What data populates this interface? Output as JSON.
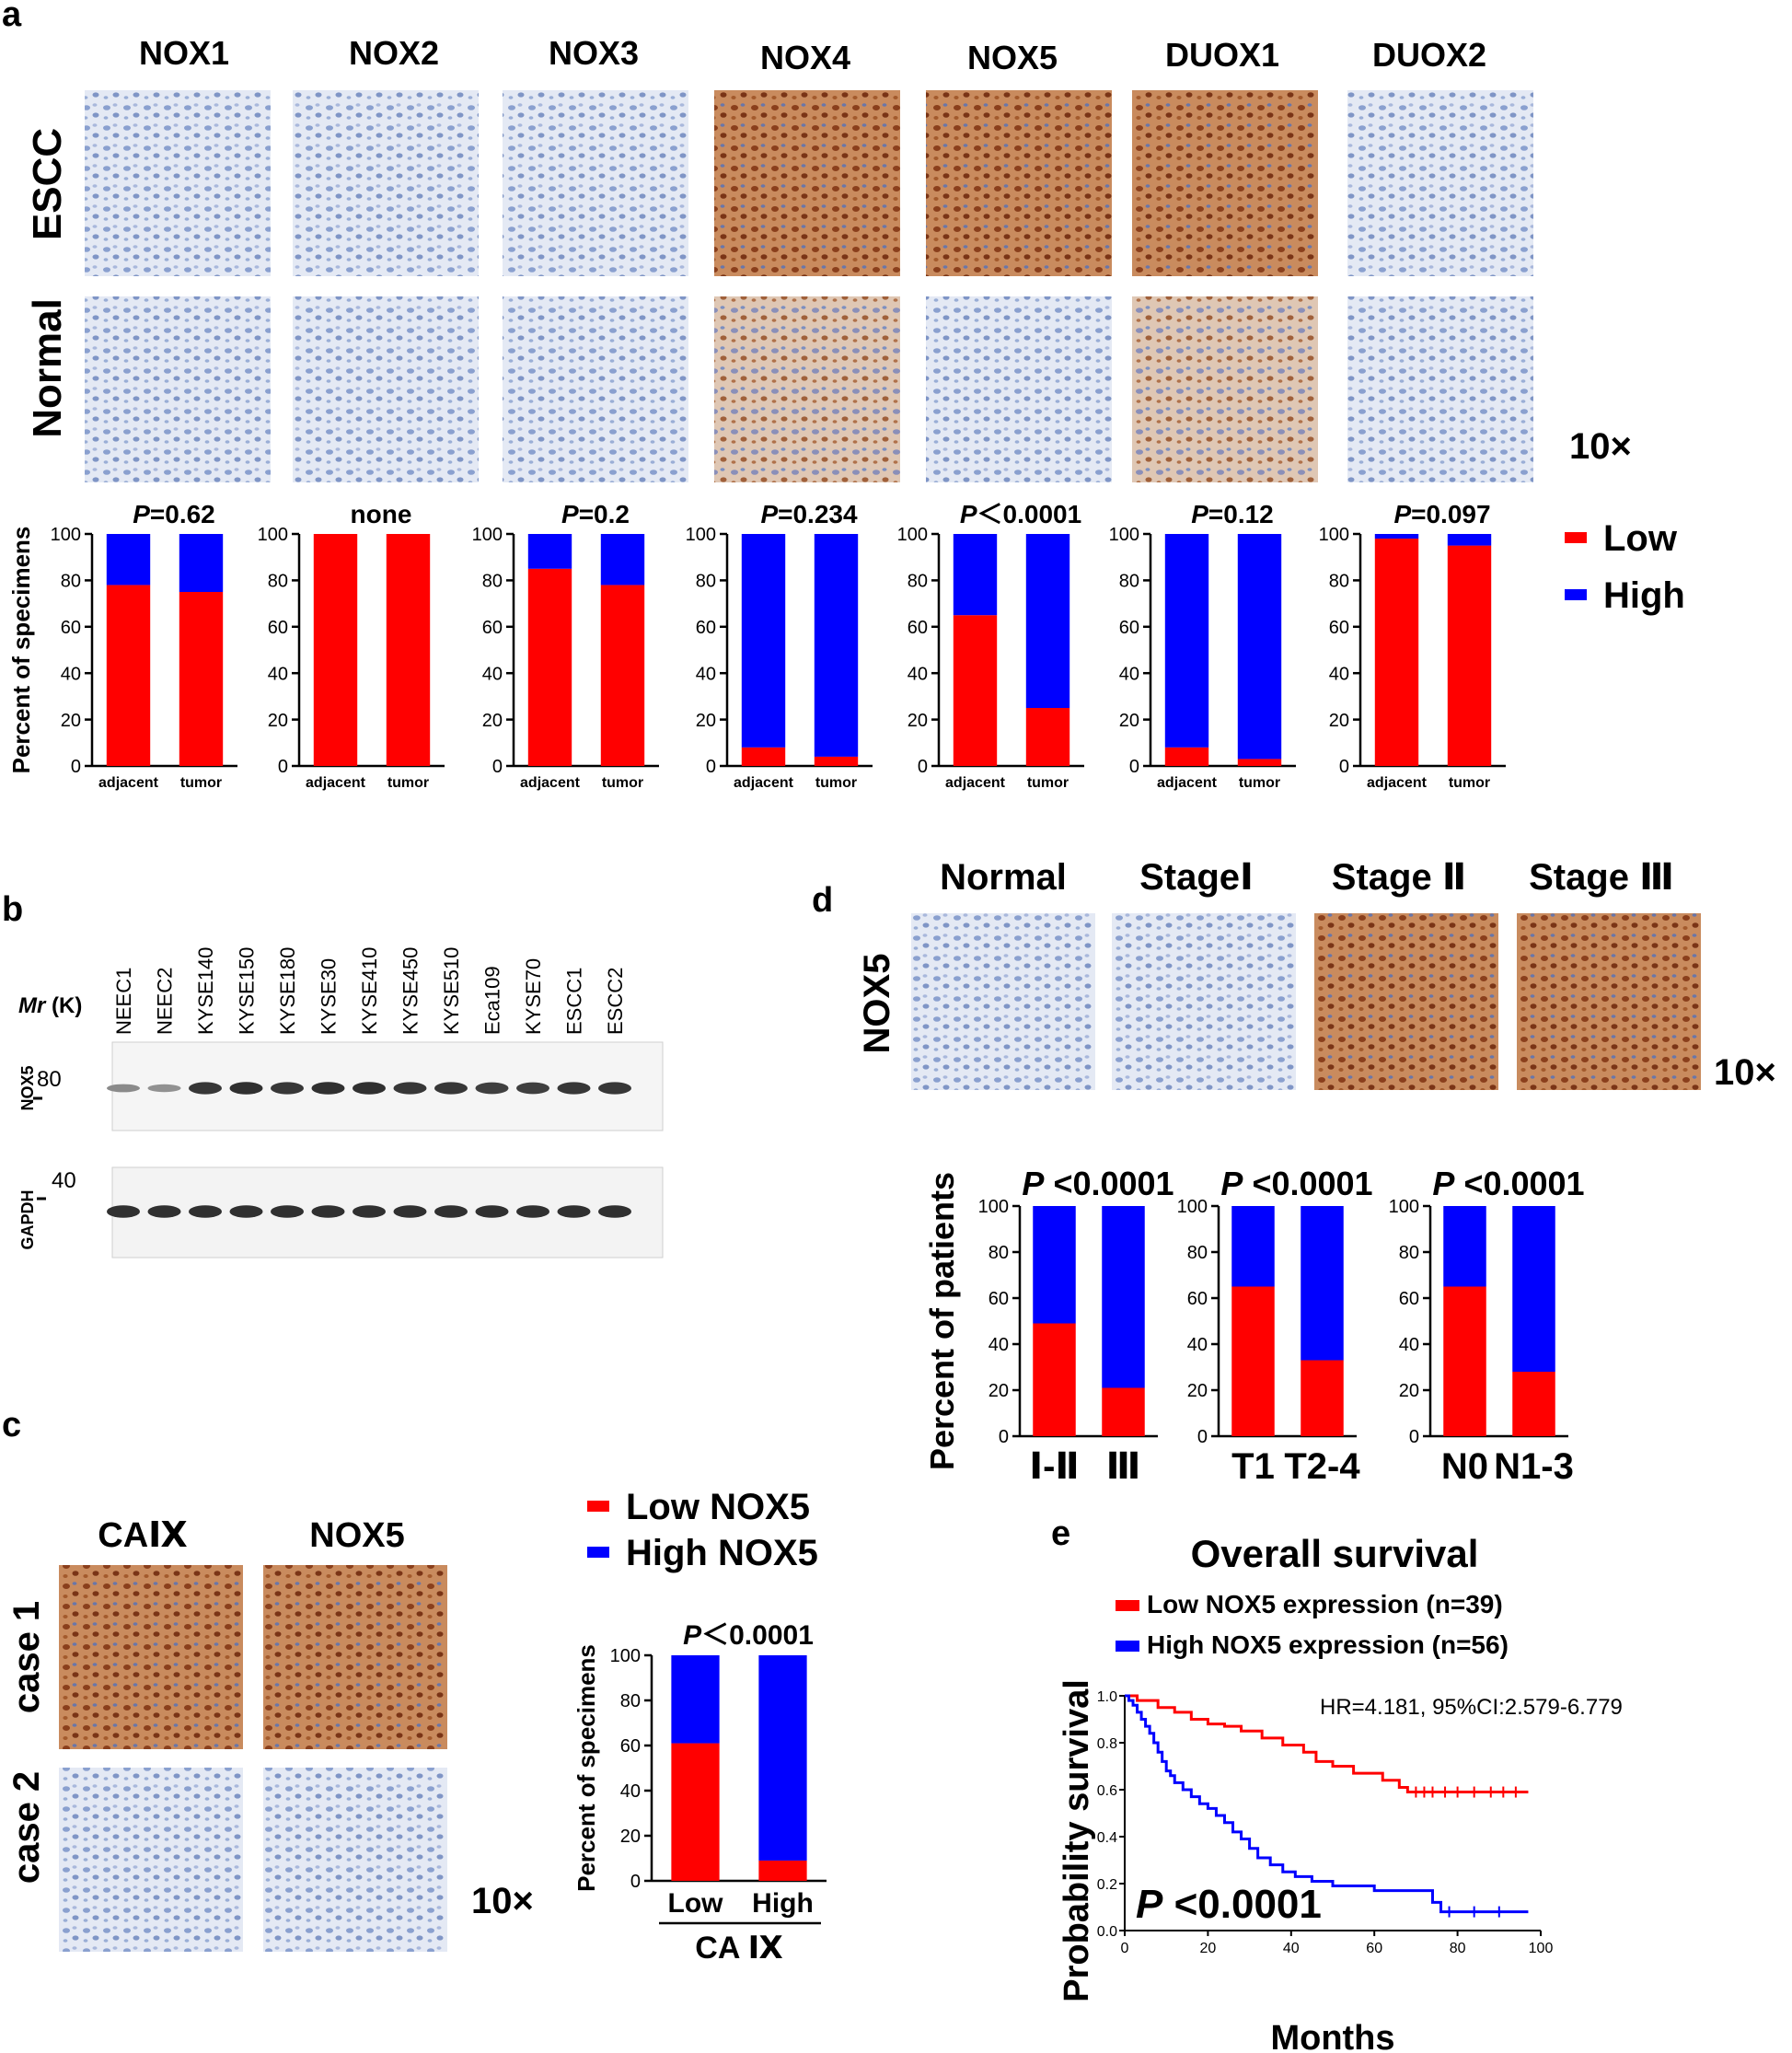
{
  "panel_labels": {
    "a": "a",
    "b": "b",
    "c": "c",
    "d": "d",
    "e": "e"
  },
  "panel_a": {
    "genes": [
      "NOX1",
      "NOX2",
      "NOX3",
      "NOX4",
      "NOX5",
      "DUOX1",
      "DUOX2"
    ],
    "row_labels": [
      "ESCC",
      "Normal"
    ],
    "magnification": "10×",
    "stain_levels": {
      "escc": [
        "weak",
        "weak",
        "weak",
        "strong",
        "strong",
        "strong",
        "weak"
      ],
      "normal": [
        "weak",
        "weak",
        "weak",
        "moderate",
        "weak",
        "moderate",
        "weak"
      ]
    }
  },
  "panel_b": {
    "mr_label": "Mr",
    "mr_unit": "(K)",
    "lanes": [
      "NEEC1",
      "NEEC2",
      "KYSE140",
      "KYSE150",
      "KYSE180",
      "KYSE30",
      "KYSE410",
      "KYSE450",
      "KYSE510",
      "Eca109",
      "KYSE70",
      "ESCC1",
      "ESCC2"
    ],
    "blots": [
      {
        "protein": "NOX5",
        "marker": "80",
        "band_intensity": [
          0.35,
          0.3,
          0.9,
          0.95,
          0.9,
          0.95,
          0.95,
          0.9,
          0.9,
          0.85,
          0.85,
          0.9,
          0.9
        ]
      },
      {
        "protein": "GAPDH",
        "marker": "40",
        "band_intensity": [
          0.95,
          0.95,
          0.95,
          0.95,
          0.95,
          0.95,
          0.95,
          0.95,
          0.95,
          0.95,
          0.95,
          0.95,
          0.95
        ]
      }
    ]
  },
  "panel_c": {
    "col_labels": [
      "CAⅨ",
      "NOX5"
    ],
    "row_labels": [
      "case 1",
      "case 2"
    ],
    "magnification": "10×"
  },
  "panel_d": {
    "col_labels": [
      "Normal",
      "StageⅠ",
      "Stage Ⅱ",
      "Stage Ⅲ"
    ],
    "row_label": "NOX5",
    "magnification": "10×"
  },
  "legend_ad": {
    "low": "Low",
    "high": "High"
  },
  "legend_c": {
    "low": "Low NOX5",
    "high": "High NOX5"
  },
  "colors": {
    "low": "#ff0000",
    "high": "#0000ff",
    "stain_brown": "#a0522d",
    "tissue_blue": "#9fb3d6"
  },
  "chart_data": [
    {
      "id": "a-NOX1",
      "type": "bar",
      "stacked": true,
      "title": "P=0.62",
      "ylabel": "Percent of specimens",
      "categories": [
        "adjacent",
        "tumor"
      ],
      "ylim": [
        0,
        100
      ],
      "yticks": [
        "0",
        "20",
        "40",
        "60",
        "80",
        "100"
      ],
      "series": [
        {
          "name": "Low",
          "values": [
            78,
            75
          ]
        },
        {
          "name": "High",
          "values": [
            22,
            25
          ]
        }
      ]
    },
    {
      "id": "a-NOX2",
      "type": "bar",
      "stacked": true,
      "title": "none",
      "ylabel": "",
      "categories": [
        "adjacent",
        "tumor"
      ],
      "ylim": [
        0,
        100
      ],
      "yticks": [
        "0",
        "20",
        "40",
        "60",
        "80",
        "100"
      ],
      "series": [
        {
          "name": "Low",
          "values": [
            100,
            100
          ]
        },
        {
          "name": "High",
          "values": [
            0,
            0
          ]
        }
      ]
    },
    {
      "id": "a-NOX3",
      "type": "bar",
      "stacked": true,
      "title": "P=0.2",
      "ylabel": "",
      "categories": [
        "adjacent",
        "tumor"
      ],
      "ylim": [
        0,
        100
      ],
      "yticks": [
        "0",
        "20",
        "40",
        "60",
        "80",
        "100"
      ],
      "series": [
        {
          "name": "Low",
          "values": [
            85,
            78
          ]
        },
        {
          "name": "High",
          "values": [
            15,
            22
          ]
        }
      ]
    },
    {
      "id": "a-NOX4",
      "type": "bar",
      "stacked": true,
      "title": "P=0.234",
      "ylabel": "",
      "categories": [
        "adjacent",
        "tumor"
      ],
      "ylim": [
        0,
        100
      ],
      "yticks": [
        "0",
        "20",
        "40",
        "60",
        "80",
        "100"
      ],
      "series": [
        {
          "name": "Low",
          "values": [
            8,
            4
          ]
        },
        {
          "name": "High",
          "values": [
            92,
            96
          ]
        }
      ]
    },
    {
      "id": "a-NOX5",
      "type": "bar",
      "stacked": true,
      "title": "P＜0.0001",
      "ylabel": "",
      "categories": [
        "adjacent",
        "tumor"
      ],
      "ylim": [
        0,
        100
      ],
      "yticks": [
        "0",
        "20",
        "40",
        "60",
        "80",
        "100"
      ],
      "series": [
        {
          "name": "Low",
          "values": [
            65,
            25
          ]
        },
        {
          "name": "High",
          "values": [
            35,
            75
          ]
        }
      ]
    },
    {
      "id": "a-DUOX1",
      "type": "bar",
      "stacked": true,
      "title": "P=0.12",
      "ylabel": "",
      "categories": [
        "adjacent",
        "tumor"
      ],
      "ylim": [
        0,
        100
      ],
      "yticks": [
        "0",
        "20",
        "40",
        "60",
        "80",
        "100"
      ],
      "series": [
        {
          "name": "Low",
          "values": [
            8,
            3
          ]
        },
        {
          "name": "High",
          "values": [
            92,
            97
          ]
        }
      ]
    },
    {
      "id": "a-DUOX2",
      "type": "bar",
      "stacked": true,
      "title": "P=0.097",
      "ylabel": "",
      "categories": [
        "adjacent",
        "tumor"
      ],
      "ylim": [
        0,
        100
      ],
      "yticks": [
        "0",
        "20",
        "40",
        "60",
        "80",
        "100"
      ],
      "series": [
        {
          "name": "Low",
          "values": [
            98,
            95
          ]
        },
        {
          "name": "High",
          "values": [
            2,
            5
          ]
        }
      ]
    },
    {
      "id": "c",
      "type": "bar",
      "stacked": true,
      "title": "P＜0.0001",
      "ylabel": "Percent of specimens",
      "categories": [
        "Low",
        "High"
      ],
      "xlabel": "CA Ⅸ",
      "ylim": [
        0,
        100
      ],
      "yticks": [
        "0",
        "20",
        "40",
        "60",
        "80",
        "100"
      ],
      "series": [
        {
          "name": "Low NOX5",
          "values": [
            61,
            9
          ]
        },
        {
          "name": "High NOX5",
          "values": [
            39,
            91
          ]
        }
      ]
    },
    {
      "id": "d-stage",
      "type": "bar",
      "stacked": true,
      "title": "P <0.0001",
      "ylabel": "Percent of patients",
      "categories": [
        "Ⅰ-Ⅱ",
        "Ⅲ"
      ],
      "ylim": [
        0,
        100
      ],
      "yticks": [
        "0",
        "20",
        "40",
        "60",
        "80",
        "100"
      ],
      "series": [
        {
          "name": "Low",
          "values": [
            49,
            21
          ]
        },
        {
          "name": "High",
          "values": [
            51,
            79
          ]
        }
      ]
    },
    {
      "id": "d-T",
      "type": "bar",
      "stacked": true,
      "title": "P <0.0001",
      "ylabel": "",
      "categories": [
        "T1",
        "T2-4"
      ],
      "ylim": [
        0,
        100
      ],
      "yticks": [
        "0",
        "20",
        "40",
        "60",
        "80",
        "100"
      ],
      "series": [
        {
          "name": "Low",
          "values": [
            65,
            33
          ]
        },
        {
          "name": "High",
          "values": [
            35,
            67
          ]
        }
      ]
    },
    {
      "id": "d-N",
      "type": "bar",
      "stacked": true,
      "title": "P <0.0001",
      "ylabel": "",
      "categories": [
        "N0",
        "N1-3"
      ],
      "ylim": [
        0,
        100
      ],
      "yticks": [
        "0",
        "20",
        "40",
        "60",
        "80",
        "100"
      ],
      "series": [
        {
          "name": "Low",
          "values": [
            65,
            28
          ]
        },
        {
          "name": "High",
          "values": [
            35,
            72
          ]
        }
      ]
    },
    {
      "id": "e",
      "type": "line",
      "step": true,
      "title": "Overall survival",
      "xlabel": "Months",
      "ylabel": "Probability survival",
      "xlim": [
        0,
        100
      ],
      "ylim": [
        0,
        1.0
      ],
      "xticks": [
        "0",
        "20",
        "40",
        "60",
        "80",
        "100"
      ],
      "yticks": [
        "0.0",
        "0.2",
        "0.4",
        "0.6",
        "0.8",
        "1.0"
      ],
      "annotation": "HR=4.181, 95%CI:2.579-6.779",
      "pvalue": "P <0.0001",
      "series": [
        {
          "name": "Low NOX5 expression (n=39)",
          "color": "#ff0000",
          "x": [
            0,
            3,
            8,
            12,
            16,
            20,
            24,
            28,
            33,
            38,
            43,
            46,
            50,
            55,
            62,
            66,
            68,
            97
          ],
          "y": [
            1.0,
            0.98,
            0.95,
            0.93,
            0.9,
            0.88,
            0.87,
            0.85,
            0.82,
            0.79,
            0.76,
            0.72,
            0.7,
            0.67,
            0.64,
            0.61,
            0.59,
            0.59
          ],
          "censor_x": [
            70,
            72,
            74,
            77,
            80,
            84,
            88,
            91,
            94
          ]
        },
        {
          "name": "High NOX5 expression (n=56)",
          "color": "#0000ff",
          "x": [
            0,
            1,
            2,
            3,
            4,
            5,
            6,
            7,
            8,
            9,
            10,
            11,
            12,
            14,
            16,
            18,
            20,
            22,
            24,
            26,
            28,
            30,
            32,
            35,
            38,
            41,
            45,
            50,
            60,
            74,
            76,
            97
          ],
          "y": [
            1.0,
            0.98,
            0.96,
            0.93,
            0.9,
            0.87,
            0.84,
            0.8,
            0.76,
            0.72,
            0.68,
            0.66,
            0.63,
            0.6,
            0.57,
            0.54,
            0.52,
            0.49,
            0.46,
            0.42,
            0.39,
            0.35,
            0.31,
            0.28,
            0.25,
            0.23,
            0.21,
            0.19,
            0.17,
            0.12,
            0.08,
            0.08
          ],
          "censor_x": [
            78,
            84,
            90
          ]
        }
      ]
    }
  ]
}
